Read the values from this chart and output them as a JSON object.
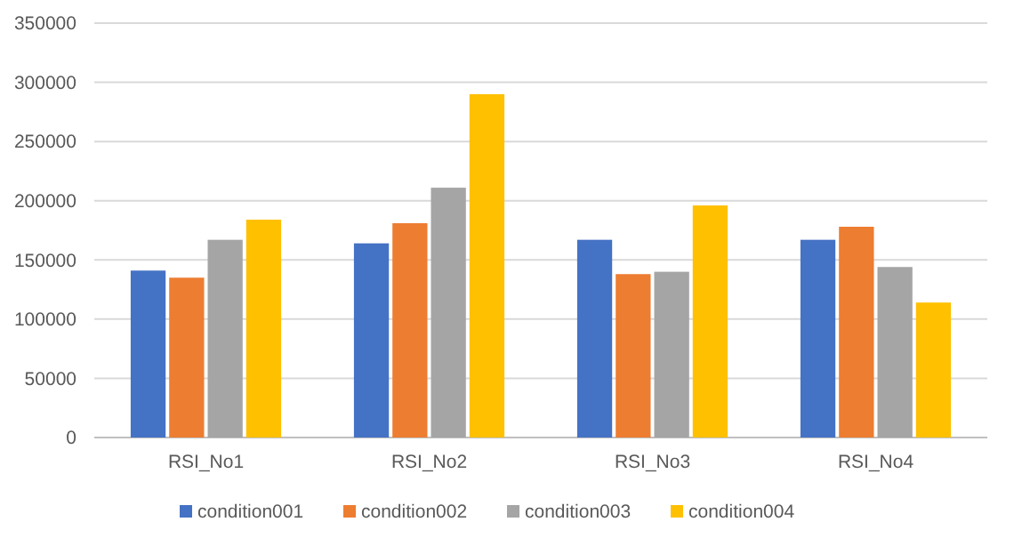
{
  "chart_data": {
    "type": "bar",
    "categories": [
      "RSI_No1",
      "RSI_No2",
      "RSI_No3",
      "RSI_No4"
    ],
    "series": [
      {
        "name": "condition001",
        "color": "#4472c4",
        "values": [
          141000,
          164000,
          167000,
          167000
        ]
      },
      {
        "name": "condition002",
        "color": "#ed7d31",
        "values": [
          135000,
          181000,
          138000,
          178000
        ]
      },
      {
        "name": "condition003",
        "color": "#a5a5a5",
        "values": [
          167000,
          211000,
          140000,
          144000
        ]
      },
      {
        "name": "condition004",
        "color": "#ffc000",
        "values": [
          184000,
          290000,
          196000,
          114000
        ]
      }
    ],
    "ylim": [
      0,
      350000
    ],
    "yticks": [
      0,
      50000,
      100000,
      150000,
      200000,
      250000,
      300000,
      350000
    ],
    "grid": "y",
    "legend": "bottom"
  }
}
